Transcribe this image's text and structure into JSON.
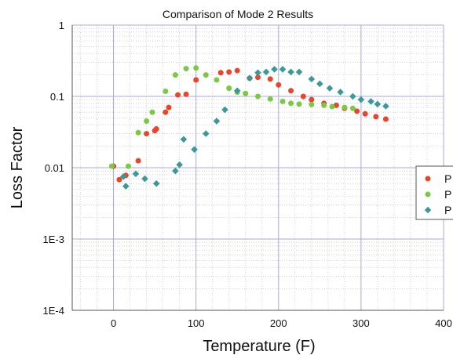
{
  "chart_data": {
    "type": "scatter",
    "title": "Comparison of Mode 2 Results",
    "xlabel": "Temperature (F)",
    "ylabel": "Loss Factor",
    "xlim": [
      -50,
      400
    ],
    "ylim": [
      0.0001,
      1
    ],
    "y_scale": "log",
    "x_ticks": [
      0,
      100,
      200,
      300,
      400
    ],
    "x_tick_labels": [
      "0",
      "100",
      "200",
      "300",
      "400"
    ],
    "y_ticks": [
      0.0001,
      0.001,
      0.01,
      0.1,
      1
    ],
    "y_tick_labels": [
      "1E-4",
      "1E-3",
      "0.01",
      "0.1",
      "1"
    ],
    "grid": true,
    "legend_position": "right",
    "series": [
      {
        "name": "P",
        "color": "#e8452a",
        "marker": "circle",
        "points": [
          {
            "x": 0,
            "y": 0.0105
          },
          {
            "x": 7,
            "y": 0.0068
          },
          {
            "x": 15,
            "y": 0.0078
          },
          {
            "x": 30,
            "y": 0.0125
          },
          {
            "x": 40,
            "y": 0.03
          },
          {
            "x": 50,
            "y": 0.033
          },
          {
            "x": 52,
            "y": 0.035
          },
          {
            "x": 63,
            "y": 0.06
          },
          {
            "x": 67,
            "y": 0.07
          },
          {
            "x": 78,
            "y": 0.105
          },
          {
            "x": 88,
            "y": 0.107
          },
          {
            "x": 100,
            "y": 0.17
          },
          {
            "x": 130,
            "y": 0.215
          },
          {
            "x": 140,
            "y": 0.22
          },
          {
            "x": 150,
            "y": 0.23
          },
          {
            "x": 165,
            "y": 0.18
          },
          {
            "x": 175,
            "y": 0.185
          },
          {
            "x": 190,
            "y": 0.175
          },
          {
            "x": 200,
            "y": 0.145
          },
          {
            "x": 215,
            "y": 0.12
          },
          {
            "x": 230,
            "y": 0.1
          },
          {
            "x": 240,
            "y": 0.09
          },
          {
            "x": 255,
            "y": 0.08
          },
          {
            "x": 270,
            "y": 0.075
          },
          {
            "x": 280,
            "y": 0.068
          },
          {
            "x": 295,
            "y": 0.062
          },
          {
            "x": 305,
            "y": 0.057
          },
          {
            "x": 318,
            "y": 0.052
          },
          {
            "x": 330,
            "y": 0.048
          }
        ]
      },
      {
        "name": "P",
        "color": "#7ac943",
        "marker": "circle",
        "points": [
          {
            "x": -2,
            "y": 0.0105
          },
          {
            "x": 18,
            "y": 0.0105
          },
          {
            "x": 30,
            "y": 0.031
          },
          {
            "x": 40,
            "y": 0.045
          },
          {
            "x": 47,
            "y": 0.06
          },
          {
            "x": 63,
            "y": 0.118
          },
          {
            "x": 75,
            "y": 0.2
          },
          {
            "x": 88,
            "y": 0.245
          },
          {
            "x": 100,
            "y": 0.25
          },
          {
            "x": 112,
            "y": 0.2
          },
          {
            "x": 125,
            "y": 0.17
          },
          {
            "x": 140,
            "y": 0.13
          },
          {
            "x": 150,
            "y": 0.115
          },
          {
            "x": 160,
            "y": 0.11
          },
          {
            "x": 175,
            "y": 0.1
          },
          {
            "x": 190,
            "y": 0.092
          },
          {
            "x": 205,
            "y": 0.085
          },
          {
            "x": 215,
            "y": 0.08
          },
          {
            "x": 225,
            "y": 0.078
          },
          {
            "x": 240,
            "y": 0.077
          },
          {
            "x": 255,
            "y": 0.075
          },
          {
            "x": 265,
            "y": 0.072
          },
          {
            "x": 280,
            "y": 0.07
          },
          {
            "x": 290,
            "y": 0.068
          }
        ]
      },
      {
        "name": "P",
        "color": "#3a9a9a",
        "marker": "diamond",
        "points": [
          {
            "x": 12,
            "y": 0.0075
          },
          {
            "x": 15,
            "y": 0.0055
          },
          {
            "x": 27,
            "y": 0.0082
          },
          {
            "x": 38,
            "y": 0.007
          },
          {
            "x": 52,
            "y": 0.006
          },
          {
            "x": 75,
            "y": 0.009
          },
          {
            "x": 80,
            "y": 0.011
          },
          {
            "x": 85,
            "y": 0.025
          },
          {
            "x": 98,
            "y": 0.018
          },
          {
            "x": 112,
            "y": 0.03
          },
          {
            "x": 125,
            "y": 0.045
          },
          {
            "x": 135,
            "y": 0.065
          },
          {
            "x": 150,
            "y": 0.12
          },
          {
            "x": 165,
            "y": 0.18
          },
          {
            "x": 175,
            "y": 0.215
          },
          {
            "x": 185,
            "y": 0.22
          },
          {
            "x": 195,
            "y": 0.24
          },
          {
            "x": 205,
            "y": 0.24
          },
          {
            "x": 215,
            "y": 0.22
          },
          {
            "x": 225,
            "y": 0.22
          },
          {
            "x": 240,
            "y": 0.175
          },
          {
            "x": 250,
            "y": 0.15
          },
          {
            "x": 262,
            "y": 0.13
          },
          {
            "x": 275,
            "y": 0.115
          },
          {
            "x": 290,
            "y": 0.1
          },
          {
            "x": 300,
            "y": 0.09
          },
          {
            "x": 312,
            "y": 0.085
          },
          {
            "x": 320,
            "y": 0.078
          },
          {
            "x": 330,
            "y": 0.073
          }
        ]
      }
    ]
  }
}
